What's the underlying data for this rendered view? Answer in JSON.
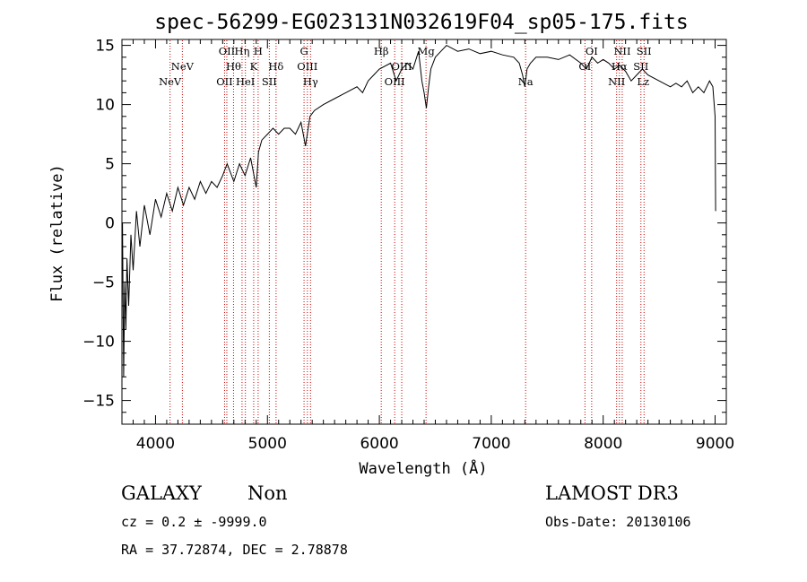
{
  "chart_data": {
    "type": "line",
    "title": "spec-56299-EG023131N032619F04_sp05-175.fits",
    "xlabel": "Wavelength (Å)",
    "ylabel": "Flux (relative)",
    "xlim": [
      3700,
      9100
    ],
    "ylim": [
      -17,
      15.5
    ],
    "xticks": [
      4000,
      5000,
      6000,
      7000,
      8000,
      9000
    ],
    "yticks": [
      -15,
      -10,
      -5,
      0,
      5,
      10,
      15
    ],
    "grid": false,
    "series": [
      {
        "color": "#000000",
        "x": [
          3705,
          3715,
          3725,
          3735,
          3745,
          3760,
          3780,
          3800,
          3830,
          3860,
          3900,
          3950,
          4000,
          4050,
          4100,
          4150,
          4200,
          4250,
          4300,
          4350,
          4400,
          4450,
          4500,
          4550,
          4600,
          4640,
          4700,
          4750,
          4800,
          4850,
          4900,
          4920,
          4950,
          5000,
          5050,
          5100,
          5150,
          5200,
          5250,
          5300,
          5340,
          5380,
          5420,
          5500,
          5600,
          5700,
          5800,
          5850,
          5900,
          5950,
          6000,
          6100,
          6150,
          6200,
          6250,
          6300,
          6350,
          6380,
          6400,
          6420,
          6440,
          6460,
          6500,
          6550,
          6600,
          6700,
          6800,
          6900,
          7000,
          7100,
          7200,
          7250,
          7280,
          7300,
          7320,
          7350,
          7400,
          7500,
          7600,
          7700,
          7800,
          7850,
          7900,
          7950,
          8000,
          8050,
          8100,
          8150,
          8200,
          8250,
          8300,
          8350,
          8400,
          8500,
          8600,
          8650,
          8700,
          8750,
          8800,
          8850,
          8900,
          8950,
          8980,
          9000,
          9005
        ],
        "y": [
          0,
          -13,
          -5,
          -9,
          -3,
          -7,
          -1,
          -4,
          1,
          -2,
          1.5,
          -1,
          2,
          0.5,
          2.5,
          1,
          3,
          1.5,
          3,
          2,
          3.5,
          2.5,
          3.5,
          3,
          4,
          5,
          3.5,
          5,
          4,
          5.5,
          3,
          6,
          7,
          7.5,
          8,
          7.5,
          8,
          8,
          7.5,
          8.5,
          6.5,
          9,
          9.5,
          10,
          10.5,
          11,
          11.5,
          11,
          12,
          12.5,
          13,
          13.5,
          12,
          13,
          13.5,
          13,
          14.5,
          12,
          11,
          9.7,
          11.5,
          13,
          14,
          14.5,
          15,
          14.5,
          14.7,
          14.3,
          14.5,
          14.2,
          14,
          13.5,
          12.5,
          11.5,
          13,
          13.5,
          14,
          14,
          13.8,
          14.2,
          13.5,
          13,
          14,
          13.5,
          13.8,
          13.5,
          13,
          13.3,
          12.8,
          12,
          12.5,
          13,
          12.5,
          12,
          11.5,
          11.8,
          11.5,
          12,
          11,
          11.5,
          11,
          12,
          11.5,
          9,
          1
        ]
      }
    ],
    "lines": [
      {
        "name": "NeV",
        "x": 4130,
        "row": 3
      },
      {
        "name": "NeV",
        "x": 4240,
        "row": 2
      },
      {
        "name": "OII",
        "x": 4617,
        "row": 3
      },
      {
        "name": "OII",
        "x": 4637,
        "row": 1
      },
      {
        "name": "Hθ",
        "x": 4697,
        "row": 2
      },
      {
        "name": "Hη",
        "x": 4773,
        "row": 1
      },
      {
        "name": "HeI",
        "x": 4803,
        "row": 3
      },
      {
        "name": "K",
        "x": 4877,
        "row": 2
      },
      {
        "name": "H",
        "x": 4917,
        "row": 1
      },
      {
        "name": "SII",
        "x": 5017,
        "row": 3
      },
      {
        "name": "Hδ",
        "x": 5077,
        "row": 2
      },
      {
        "name": "G",
        "x": 5327,
        "row": 1
      },
      {
        "name": "OIII",
        "x": 5357,
        "row": 2
      },
      {
        "name": "Hγ",
        "x": 5385,
        "row": 3
      },
      {
        "name": "Hβ",
        "x": 6017,
        "row": 1
      },
      {
        "name": "OIII",
        "x": 6137,
        "row": 3
      },
      {
        "name": "OIII",
        "x": 6200,
        "row": 2
      },
      {
        "name": "Mg",
        "x": 6417,
        "row": 1
      },
      {
        "name": "Na",
        "x": 7307,
        "row": 3
      },
      {
        "name": "OI",
        "x": 7837,
        "row": 2
      },
      {
        "name": "OI",
        "x": 7897,
        "row": 1
      },
      {
        "name": "NII",
        "x": 8120,
        "row": 3
      },
      {
        "name": "Hα",
        "x": 8145,
        "row": 2
      },
      {
        "name": "NII",
        "x": 8170,
        "row": 1
      },
      {
        "name": "SII",
        "x": 8337,
        "row": 2
      },
      {
        "name": "SII",
        "x": 8365,
        "row": 1
      }
    ],
    "line_label_extras": [
      {
        "name": "Lz",
        "x": 8357,
        "row": 3
      }
    ]
  },
  "info": {
    "object_class": "GALAXY",
    "subclass": "Non",
    "survey": "LAMOST DR3",
    "cz": "cz = 0.2 ± -9999.0",
    "obs_date": "Obs-Date: 20130106",
    "coords": "RA =  37.72874, DEC =   2.78878"
  },
  "colors": {
    "axis": "#000000",
    "spectrum": "#000000",
    "marker": "#cc0000"
  }
}
